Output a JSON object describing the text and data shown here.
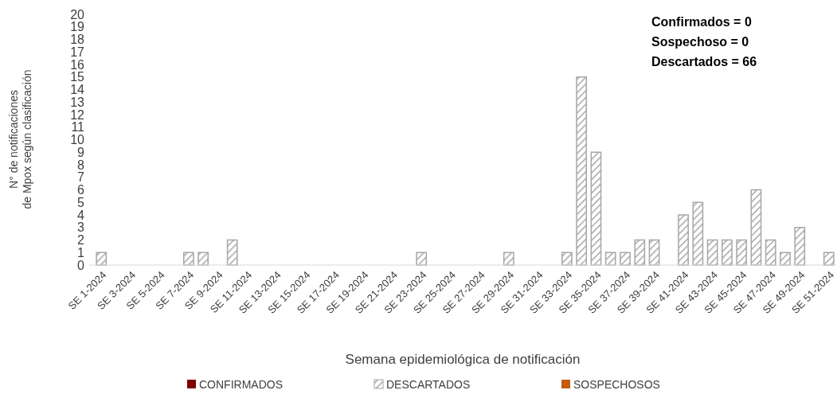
{
  "chart_data": {
    "type": "bar",
    "xlabel": "Semana epidemiológica de notificación",
    "ylabel": "N° de notificaciones\nde Mpox según clasificación",
    "categories": [
      "SE 1-2024",
      null,
      "SE 3-2024",
      null,
      "SE 5-2024",
      null,
      "SE 7-2024",
      null,
      "SE 9-2024",
      null,
      "SE 11-2024",
      null,
      "SE 13-2024",
      null,
      "SE 15-2024",
      null,
      "SE 17-2024",
      null,
      "SE 19-2024",
      null,
      "SE 21-2024",
      null,
      "SE 23-2024",
      null,
      "SE 25-2024",
      null,
      "SE 27-2024",
      null,
      "SE 29-2024",
      null,
      "SE 31-2024",
      null,
      "SE 33-2024",
      null,
      "SE 35-2024",
      null,
      "SE 37-2024",
      null,
      "SE 39-2024",
      null,
      "SE 41-2024",
      null,
      "SE 43-2024",
      null,
      "SE 45-2024",
      null,
      "SE 47-2024",
      null,
      "SE 49-2024",
      null,
      "SE 51-2024"
    ],
    "series": [
      {
        "name": "CONFIRMADOS",
        "color": "#7f0000",
        "values": [
          0,
          0,
          0,
          0,
          0,
          0,
          0,
          0,
          0,
          0,
          0,
          0,
          0,
          0,
          0,
          0,
          0,
          0,
          0,
          0,
          0,
          0,
          0,
          0,
          0,
          0,
          0,
          0,
          0,
          0,
          0,
          0,
          0,
          0,
          0,
          0,
          0,
          0,
          0,
          0,
          0,
          0,
          0,
          0,
          0,
          0,
          0,
          0,
          0,
          0,
          0
        ]
      },
      {
        "name": "DESCARTADOS",
        "color": "#a6a6a6",
        "values": [
          1,
          0,
          0,
          0,
          0,
          0,
          1,
          1,
          0,
          2,
          0,
          0,
          0,
          0,
          0,
          0,
          0,
          0,
          0,
          0,
          0,
          0,
          1,
          0,
          0,
          0,
          0,
          0,
          1,
          0,
          0,
          0,
          1,
          15,
          9,
          1,
          1,
          2,
          2,
          0,
          4,
          5,
          2,
          2,
          2,
          6,
          2,
          1,
          3,
          0,
          1
        ]
      },
      {
        "name": "SOSPECHOSOS",
        "color": "#c55a11",
        "values": [
          0,
          0,
          0,
          0,
          0,
          0,
          0,
          0,
          0,
          0,
          0,
          0,
          0,
          0,
          0,
          0,
          0,
          0,
          0,
          0,
          0,
          0,
          0,
          0,
          0,
          0,
          0,
          0,
          0,
          0,
          0,
          0,
          0,
          0,
          0,
          0,
          0,
          0,
          0,
          0,
          0,
          0,
          0,
          0,
          0,
          0,
          0,
          0,
          0,
          0,
          0
        ]
      }
    ],
    "ylim": [
      0,
      20
    ],
    "yticks": [
      0,
      1,
      2,
      3,
      4,
      5,
      6,
      7,
      8,
      9,
      10,
      11,
      12,
      13,
      14,
      15,
      16,
      17,
      18,
      19,
      20
    ],
    "grid": false,
    "legend": "bottom",
    "annotations": [
      "Confirmados = 0",
      "Sospechoso = 0",
      "Descartados = 66"
    ]
  }
}
